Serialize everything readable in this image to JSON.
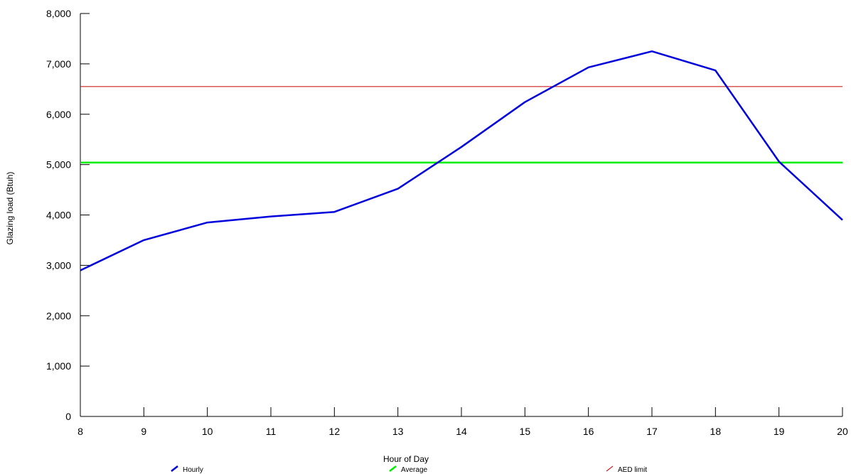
{
  "chart_data": {
    "type": "line",
    "xlabel": "Hour of Day",
    "ylabel": "Glazing load (Btuh)",
    "x": [
      8,
      9,
      10,
      11,
      12,
      13,
      14,
      15,
      16,
      17,
      18,
      19,
      20
    ],
    "xlim": [
      8,
      20
    ],
    "ylim": [
      0,
      8000
    ],
    "y_ticks": [
      "0",
      "1,000",
      "2,000",
      "3,000",
      "4,000",
      "5,000",
      "6,000",
      "7,000",
      "8,000"
    ],
    "x_ticks": [
      "8",
      "9",
      "10",
      "11",
      "12",
      "13",
      "14",
      "15",
      "16",
      "17",
      "18",
      "19",
      "20"
    ],
    "grid": false,
    "legend_position": "bottom",
    "series": [
      {
        "name": "Hourly",
        "color": "#0000dd",
        "values": [
          2900,
          3500,
          3850,
          3970,
          4060,
          4520,
          5350,
          6240,
          6930,
          7250,
          6870,
          5060,
          3900
        ]
      },
      {
        "name": "Average",
        "color": "#00ee00",
        "values": [
          5040,
          5040,
          5040,
          5040,
          5040,
          5040,
          5040,
          5040,
          5040,
          5040,
          5040,
          5040,
          5040
        ]
      },
      {
        "name": "AED limit",
        "color": "#cc2222",
        "values": [
          6550,
          6550,
          6550,
          6550,
          6550,
          6550,
          6550,
          6550,
          6550,
          6550,
          6550,
          6550,
          6550
        ]
      }
    ]
  }
}
